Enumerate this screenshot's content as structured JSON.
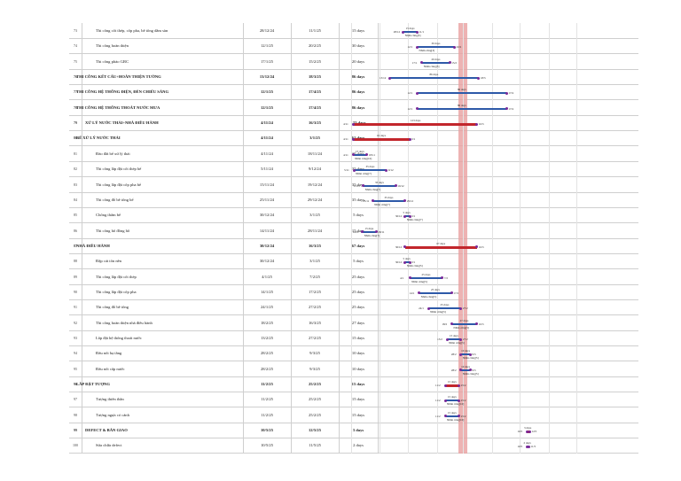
{
  "rows": [
    {
      "no": "73",
      "name": "Thi công cốt thép, cốp pha, bê tông dầm sàn",
      "start": "28/12/24",
      "end": "11/1/25",
      "dur": "15 days",
      "s": 97,
      "e": 111,
      "lvl": 2,
      "bold": false,
      "summary": false,
      "res": "Nhân công[3]",
      "durlbl": "15 days"
    },
    {
      "no": "74",
      "name": "Thi công hoàn thiện",
      "start": "12/1/25",
      "end": "20/2/25",
      "dur": "30 days",
      "s": 112,
      "e": 151,
      "lvl": 2,
      "bold": false,
      "summary": false,
      "res": "Nhân công[3]",
      "durlbl": "30 days"
    },
    {
      "no": "75",
      "name": "Thi công phào GRC",
      "start": "17/1/25",
      "end": "15/2/25",
      "dur": "20 days",
      "s": 117,
      "e": 146,
      "lvl": 2,
      "bold": false,
      "summary": false,
      "res": "Nhân công[3]",
      "durlbl": "20 days"
    },
    {
      "no": "76",
      "name": "THI CÔNG KẾT CẤU+HOÀN THIỆN TƯỜNG",
      "start": "13/12/24",
      "end": "18/3/25",
      "dur": "86 days",
      "s": 82,
      "e": 177,
      "lvl": 1,
      "bold": true,
      "summary": false,
      "res": "",
      "durlbl": "86 days"
    },
    {
      "no": "77",
      "name": "THI CÔNG HỆ THỐNG ĐIỆN, ĐÈN CHIẾU SÁNG",
      "start": "12/1/25",
      "end": "17/4/25",
      "dur": "86 days",
      "s": 112,
      "e": 207,
      "lvl": 1,
      "bold": true,
      "summary": false,
      "res": "",
      "durlbl": "86 days"
    },
    {
      "no": "78",
      "name": "THI CÔNG HỆ THỐNG THOÁT NƯỚC MƯA",
      "start": "12/1/25",
      "end": "17/4/25",
      "dur": "86 days",
      "s": 112,
      "e": 207,
      "lvl": 1,
      "bold": true,
      "summary": false,
      "res": "",
      "durlbl": "86 days"
    },
    {
      "no": "79",
      "name": "XỬ LÝ NƯỚC THẢI+NHÀ ĐIỀU HÀNH",
      "start": "4/11/24",
      "end": "16/3/25",
      "dur": "123 days",
      "s": 43,
      "e": 175,
      "lvl": 0,
      "bold": true,
      "summary": true,
      "res": "",
      "durlbl": "123 days"
    },
    {
      "no": "80",
      "name": "BỂ XỬ LÝ NƯỚC THẢI",
      "start": "4/11/24",
      "end": "3/1/25",
      "dur": "61 days",
      "s": 43,
      "e": 103,
      "lvl": 1,
      "bold": true,
      "summary": true,
      "res": "",
      "durlbl": "61 days"
    },
    {
      "no": "81",
      "name": "Đào đất bể xử lý thải",
      "start": "4/11/24",
      "end": "18/11/24",
      "dur": "15 days",
      "s": 43,
      "e": 57,
      "lvl": 2,
      "bold": false,
      "summary": false,
      "res": "Nhân công[10]",
      "durlbl": "15 days"
    },
    {
      "no": "82",
      "name": "Thi công lắp đặt cốt thép bể",
      "start": "5/11/24",
      "end": "9/12/24",
      "dur": "35 days",
      "s": 44,
      "e": 78,
      "lvl": 2,
      "bold": false,
      "summary": false,
      "res": "Nhân công[7]",
      "durlbl": "35 days"
    },
    {
      "no": "83",
      "name": "Thi công lắp đặt cốp pha bể",
      "start": "15/11/24",
      "end": "19/12/24",
      "dur": "35 days",
      "s": 54,
      "e": 88,
      "lvl": 2,
      "bold": false,
      "summary": false,
      "res": "Nhân công[7]",
      "durlbl": "35 days"
    },
    {
      "no": "84",
      "name": "Thi công đổ bê tông bể",
      "start": "25/11/24",
      "end": "29/12/24",
      "dur": "35 days",
      "s": 64,
      "e": 98,
      "lvl": 2,
      "bold": false,
      "summary": false,
      "res": "Nhân công[7]",
      "durlbl": "35 days"
    },
    {
      "no": "85",
      "name": "Chống thấm bể",
      "start": "30/12/24",
      "end": "3/1/25",
      "dur": "5 days",
      "s": 99,
      "e": 103,
      "lvl": 2,
      "bold": false,
      "summary": false,
      "res": "Nhân công[7]",
      "durlbl": "5 days"
    },
    {
      "no": "86",
      "name": "Thi công hố đồng hồ",
      "start": "14/11/24",
      "end": "28/11/24",
      "dur": "15 days",
      "s": 53,
      "e": 67,
      "lvl": 2,
      "bold": false,
      "summary": false,
      "res": "Nhân công[7]",
      "durlbl": "15 days"
    },
    {
      "no": "87",
      "name": "NHÀ ĐIỀU HÀNH",
      "start": "30/12/24",
      "end": "16/3/25",
      "dur": "67 days",
      "s": 99,
      "e": 175,
      "lvl": 1,
      "bold": true,
      "summary": true,
      "res": "",
      "durlbl": "67 days"
    },
    {
      "no": "88",
      "name": "Đập cát tôn nền",
      "start": "30/12/24",
      "end": "3/1/25",
      "dur": "5 days",
      "s": 99,
      "e": 103,
      "lvl": 2,
      "bold": false,
      "summary": false,
      "res": "Nhân công[5]",
      "durlbl": "5 days"
    },
    {
      "no": "89",
      "name": "Thi công lắp đặt cốt thép",
      "start": "4/1/25",
      "end": "7/2/25",
      "dur": "25 days",
      "s": 104,
      "e": 138,
      "lvl": 2,
      "bold": false,
      "summary": false,
      "res": "Nhân công[5]",
      "durlbl": "25 days"
    },
    {
      "no": "90",
      "name": "Thi công lắp đặt cốp pha",
      "start": "14/1/25",
      "end": "17/2/25",
      "dur": "25 days",
      "s": 114,
      "e": 148,
      "lvl": 2,
      "bold": false,
      "summary": false,
      "res": "Nhân công[5]",
      "durlbl": "25 days"
    },
    {
      "no": "91",
      "name": "Thi công đổ bê tông",
      "start": "24/1/25",
      "end": "27/2/25",
      "dur": "25 days",
      "s": 124,
      "e": 158,
      "lvl": 2,
      "bold": false,
      "summary": false,
      "res": "Nhân công[5]",
      "durlbl": "25 days"
    },
    {
      "no": "92",
      "name": "Thi công hoàn thiện nhà điều hành",
      "start": "18/2/25",
      "end": "16/3/25",
      "dur": "27 days",
      "s": 149,
      "e": 175,
      "lvl": 2,
      "bold": false,
      "summary": false,
      "res": "Nhân công[5]",
      "durlbl": "27 days"
    },
    {
      "no": "93",
      "name": "Lắp đặt hệ thống thoát nước",
      "start": "13/2/25",
      "end": "27/2/25",
      "dur": "15 days",
      "s": 144,
      "e": 158,
      "lvl": 2,
      "bold": false,
      "summary": false,
      "res": "Nhân công[5]",
      "durlbl": "15 days"
    },
    {
      "no": "94",
      "name": "Đấu nối hạ tầng",
      "start": "28/2/25",
      "end": "9/3/25",
      "dur": "10 days",
      "s": 159,
      "e": 168,
      "lvl": 2,
      "bold": false,
      "summary": false,
      "res": "Nhân công[5]",
      "durlbl": "10 days"
    },
    {
      "no": "95",
      "name": "Đấu nối cấp nước",
      "start": "28/2/25",
      "end": "9/3/25",
      "dur": "10 days",
      "s": 159,
      "e": 168,
      "lvl": 2,
      "bold": false,
      "summary": false,
      "res": "Nhân công[5]",
      "durlbl": "10 days"
    },
    {
      "no": "96",
      "name": "LẮP ĐẶT TƯỢNG",
      "start": "11/2/25",
      "end": "25/2/25",
      "dur": "15 days",
      "s": 142,
      "e": 156,
      "lvl": 1,
      "bold": true,
      "summary": true,
      "res": "",
      "durlbl": "15 days"
    },
    {
      "no": "97",
      "name": "Tượng thiên thần",
      "start": "11/2/25",
      "end": "25/2/25",
      "dur": "15 days",
      "s": 142,
      "e": 156,
      "lvl": 2,
      "bold": false,
      "summary": false,
      "res": "Nhân công[10]",
      "durlbl": "15 days"
    },
    {
      "no": "98",
      "name": "Tượng ngựa có cánh",
      "start": "11/2/25",
      "end": "25/2/25",
      "dur": "15 days",
      "s": 142,
      "e": 156,
      "lvl": 2,
      "bold": false,
      "summary": false,
      "res": "Nhân công[10]",
      "durlbl": "15 days"
    },
    {
      "no": "99",
      "name": "DEFECT & BÀN GIAO",
      "start": "10/5/25",
      "end": "12/5/25",
      "dur": "3 days",
      "s": 230,
      "e": 232,
      "lvl": 0,
      "bold": true,
      "summary": true,
      "res": "",
      "durlbl": "3 days"
    },
    {
      "no": "100",
      "name": "Sửa chữa defect",
      "start": "10/5/25",
      "end": "11/5/25",
      "dur": "2 days",
      "s": 230,
      "e": 231,
      "lvl": 2,
      "bold": false,
      "summary": false,
      "res": "",
      "durlbl": "2 days"
    }
  ],
  "colors": {
    "summary": "#c2262c",
    "task": "#2d59a8",
    "today": "#e8a0a0"
  }
}
